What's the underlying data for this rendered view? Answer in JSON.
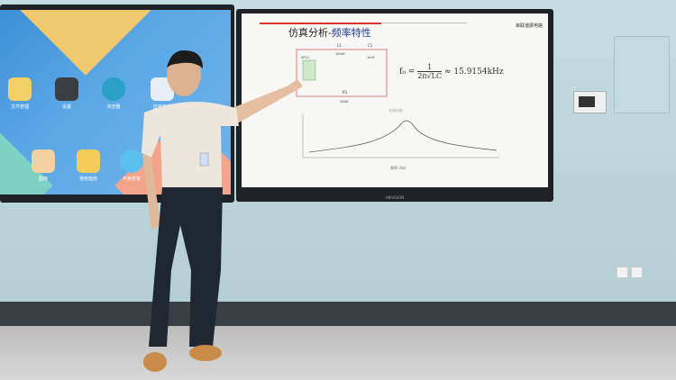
{
  "tablet_apps": [
    "文件管理",
    "设置",
    "浏览器",
    "应用商店",
    "图库",
    "使用指南",
    "平板管家"
  ],
  "screen_brand": "HIKVISION",
  "slide": {
    "title_prefix": "仿真分析-",
    "title_highlight": "频率特性",
    "corner_text": "串联谐振电路",
    "circuit": {
      "l1": "L1",
      "l1_value": "10mH",
      "c1": "C1",
      "c1_value": "10nF",
      "r1": "R1",
      "r1_value": "200Ω",
      "instrument": "XFG1"
    },
    "formula_lhs": "f₀ =",
    "formula_num": "1",
    "formula_den": "2π√LC",
    "formula_result": "≈ 15.9154kHz",
    "plot_title": "交流分析",
    "plot_xlabel": "频率 (Hz)"
  },
  "colors": {
    "accent_red": "#dd3333",
    "title_blue": "#1c3f9c",
    "wall": "#c5dde2"
  }
}
